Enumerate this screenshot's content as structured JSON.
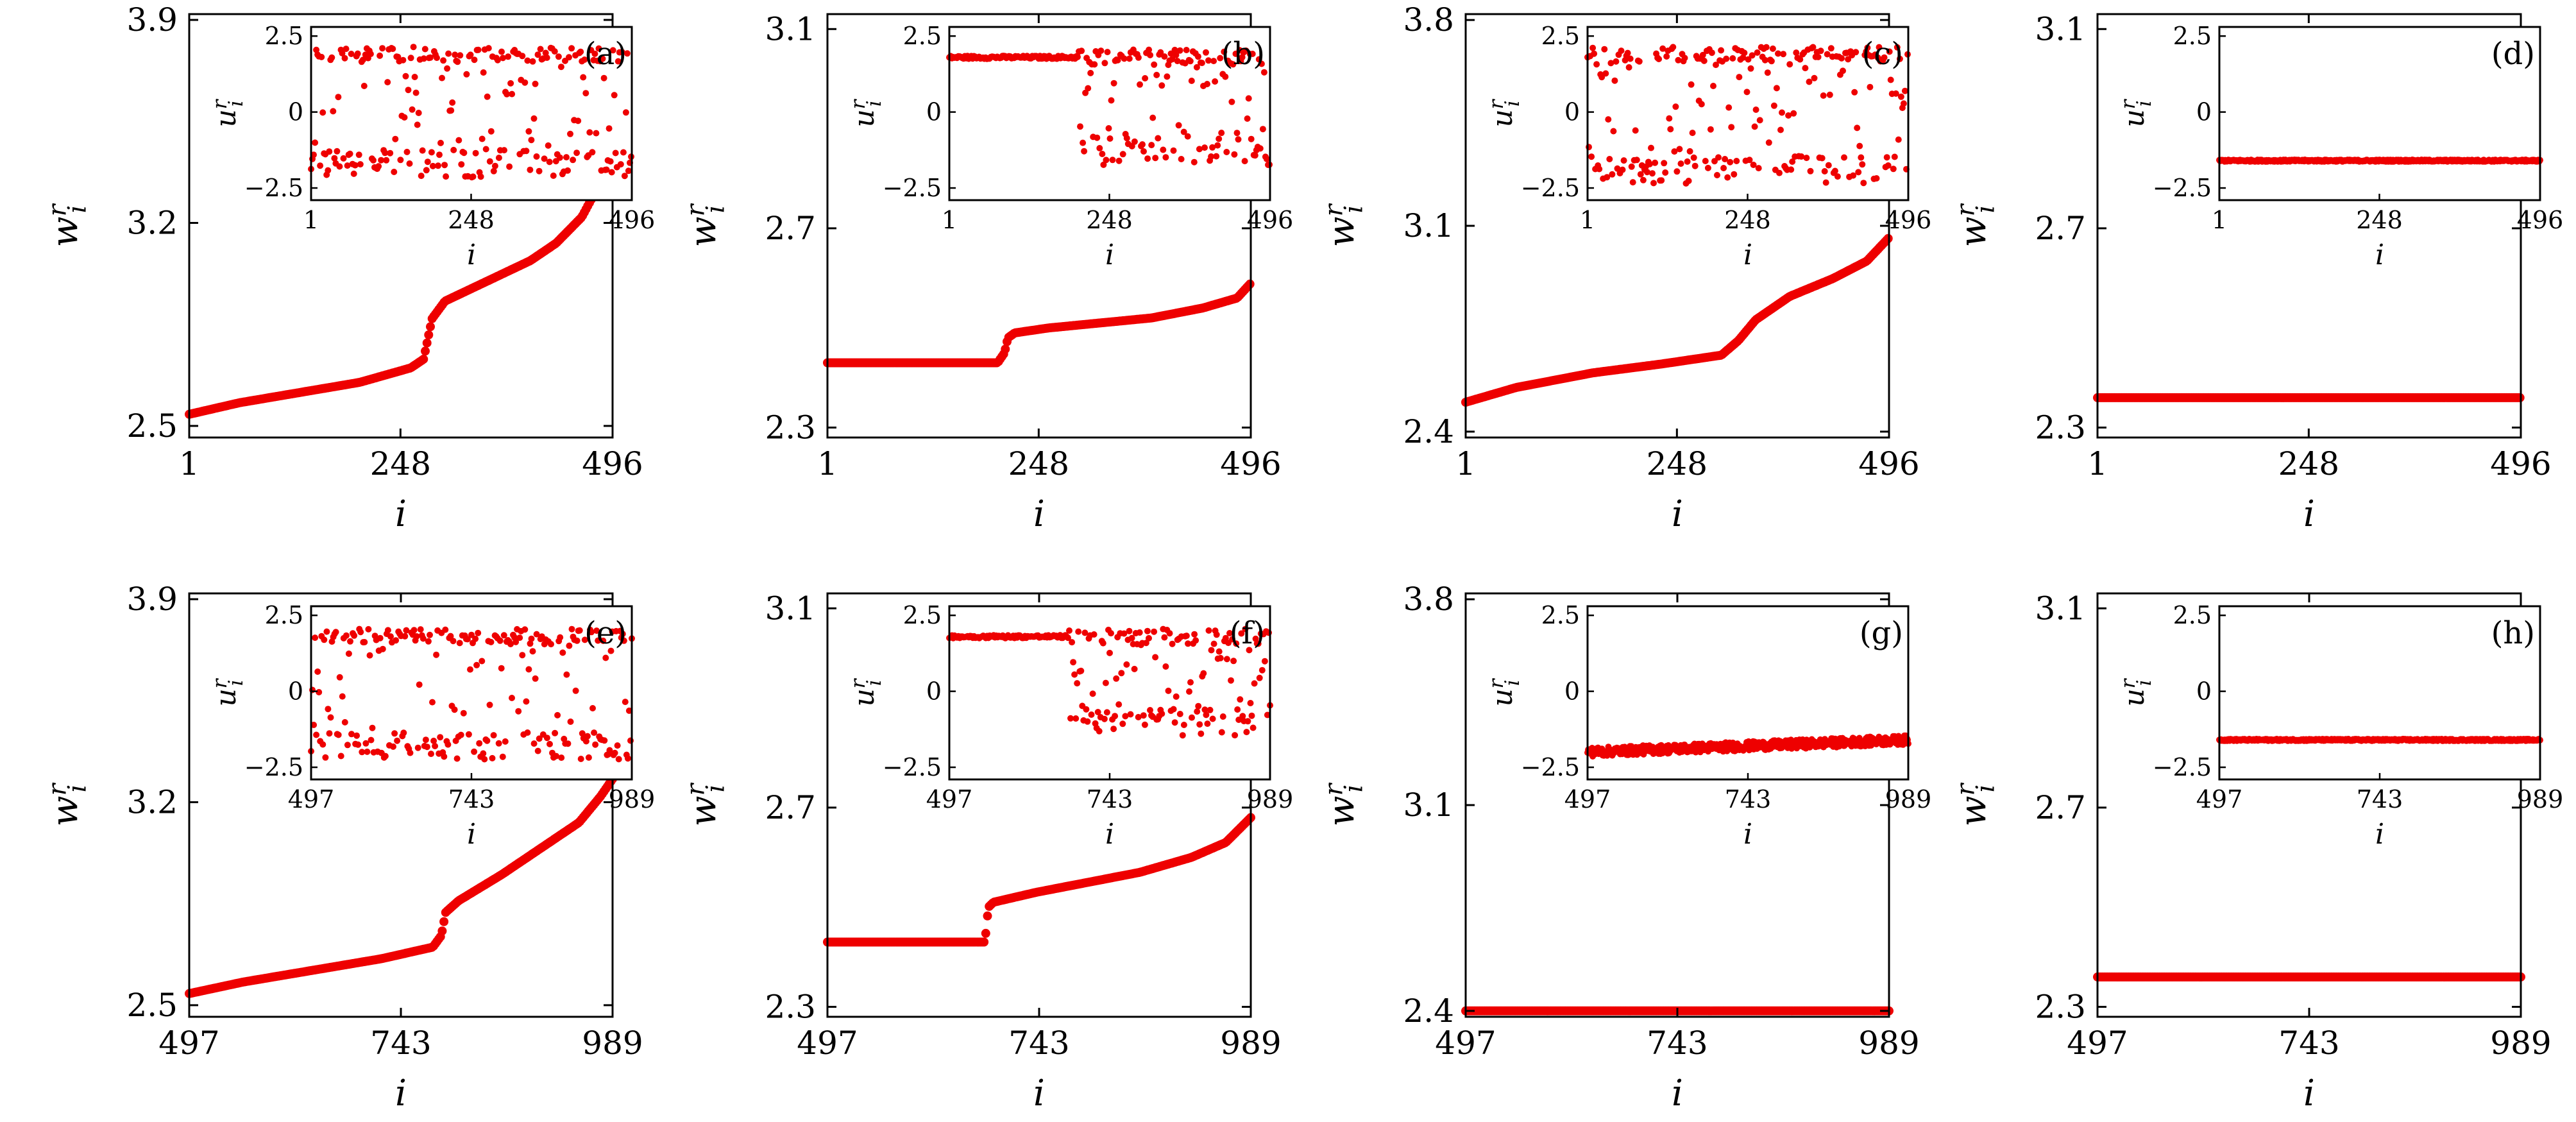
{
  "chart_data": [
    {
      "type": "scatter",
      "panel_label": "(a)",
      "xlabel": "i",
      "ylabel": "w_i^r",
      "xlim": [
        1,
        496
      ],
      "xticks": [
        1,
        248,
        496
      ],
      "ylim": [
        2.46,
        3.92
      ],
      "yticks": [
        2.5,
        3.2,
        3.9
      ],
      "color": "#ee0000",
      "main_profile": {
        "x": [
          1,
          60,
          140,
          200,
          260,
          275,
          285,
          300,
          350,
          400,
          430,
          460,
          480,
          496
        ],
        "y": [
          2.54,
          2.58,
          2.62,
          2.65,
          2.7,
          2.73,
          2.87,
          2.93,
          3.0,
          3.07,
          3.13,
          3.22,
          3.33,
          3.46
        ]
      },
      "inset": {
        "xlabel": "i",
        "ylabel": "u_i^r",
        "xlim": [
          1,
          496
        ],
        "xticks": [
          1,
          248,
          496
        ],
        "ylim": [
          -2.9,
          2.8
        ],
        "yticks": [
          -2.5,
          0,
          2.5
        ],
        "pattern": "scattered",
        "upper_band": 1.9,
        "lower_band": -1.7
      }
    },
    {
      "type": "scatter",
      "panel_label": "(b)",
      "xlabel": "i",
      "ylabel": "w_i^r",
      "xlim": [
        1,
        496
      ],
      "xticks": [
        1,
        248,
        496
      ],
      "ylim": [
        2.28,
        3.13
      ],
      "yticks": [
        2.3,
        2.7,
        3.1
      ],
      "color": "#ee0000",
      "main_profile": {
        "x": [
          1,
          200,
          208,
          212,
          220,
          260,
          320,
          380,
          440,
          480,
          496
        ],
        "y": [
          2.43,
          2.43,
          2.45,
          2.48,
          2.49,
          2.5,
          2.51,
          2.52,
          2.54,
          2.56,
          2.59
        ]
      },
      "inset": {
        "xlabel": "i",
        "ylabel": "u_i^r",
        "xlim": [
          1,
          496
        ],
        "xticks": [
          1,
          248,
          496
        ],
        "ylim": [
          -2.9,
          2.8
        ],
        "yticks": [
          -2.5,
          0,
          2.5
        ],
        "pattern": "locked-then-scattered",
        "locked_until": 200,
        "locked_value": 1.8,
        "upper_band": 1.8,
        "lower_band": -1.3
      }
    },
    {
      "type": "scatter",
      "panel_label": "(c)",
      "xlabel": "i",
      "ylabel": "w_i^r",
      "xlim": [
        1,
        496
      ],
      "xticks": [
        1,
        248,
        496
      ],
      "ylim": [
        2.38,
        3.82
      ],
      "yticks": [
        2.4,
        3.1,
        3.8
      ],
      "color": "#ee0000",
      "main_profile": {
        "x": [
          1,
          60,
          150,
          230,
          300,
          320,
          340,
          380,
          430,
          470,
          496
        ],
        "y": [
          2.5,
          2.55,
          2.6,
          2.63,
          2.66,
          2.71,
          2.78,
          2.86,
          2.92,
          2.98,
          3.06
        ]
      },
      "inset": {
        "xlabel": "i",
        "ylabel": "u_i^r",
        "xlim": [
          1,
          496
        ],
        "xticks": [
          1,
          248,
          496
        ],
        "ylim": [
          -2.9,
          2.8
        ],
        "yticks": [
          -2.5,
          0,
          2.5
        ],
        "pattern": "scattered",
        "upper_band": 1.9,
        "lower_band": -1.9
      }
    },
    {
      "type": "scatter",
      "panel_label": "(d)",
      "xlabel": "i",
      "ylabel": "w_i^r",
      "xlim": [
        1,
        496
      ],
      "xticks": [
        1,
        248,
        496
      ],
      "ylim": [
        2.28,
        3.13
      ],
      "yticks": [
        2.3,
        2.7,
        3.1
      ],
      "color": "#ee0000",
      "main_profile": {
        "x": [
          1,
          496
        ],
        "y": [
          2.36,
          2.36
        ]
      },
      "inset": {
        "xlabel": "i",
        "ylabel": "u_i^r",
        "xlim": [
          1,
          496
        ],
        "xticks": [
          1,
          248,
          496
        ],
        "ylim": [
          -2.9,
          2.8
        ],
        "yticks": [
          -2.5,
          0,
          2.5
        ],
        "pattern": "flat",
        "flat_value": -1.6
      }
    },
    {
      "type": "scatter",
      "panel_label": "(e)",
      "xlabel": "i",
      "ylabel": "w_i^r",
      "xlim": [
        497,
        989
      ],
      "xticks": [
        497,
        743,
        989
      ],
      "ylim": [
        2.46,
        3.92
      ],
      "yticks": [
        2.5,
        3.2,
        3.9
      ],
      "color": "#ee0000",
      "main_profile": {
        "x": [
          497,
          560,
          640,
          720,
          780,
          790,
          795,
          810,
          860,
          910,
          950,
          975,
          989
        ],
        "y": [
          2.54,
          2.58,
          2.62,
          2.66,
          2.7,
          2.74,
          2.82,
          2.86,
          2.95,
          3.05,
          3.13,
          3.22,
          3.28
        ]
      },
      "inset": {
        "xlabel": "i",
        "ylabel": "u_i^r",
        "xlim": [
          497,
          989
        ],
        "xticks": [
          497,
          743,
          989
        ],
        "ylim": [
          -2.9,
          2.8
        ],
        "yticks": [
          -2.5,
          0,
          2.5
        ],
        "pattern": "scattered",
        "upper_band": 1.8,
        "lower_band": -1.8
      }
    },
    {
      "type": "scatter",
      "panel_label": "(f)",
      "xlabel": "i",
      "ylabel": "w_i^r",
      "xlim": [
        497,
        989
      ],
      "xticks": [
        497,
        743,
        989
      ],
      "ylim": [
        2.28,
        3.13
      ],
      "yticks": [
        2.3,
        2.7,
        3.1
      ],
      "color": "#ee0000",
      "main_profile": {
        "x": [
          497,
          680,
          684,
          690,
          740,
          800,
          860,
          920,
          960,
          989
        ],
        "y": [
          2.43,
          2.43,
          2.5,
          2.51,
          2.53,
          2.55,
          2.57,
          2.6,
          2.63,
          2.68
        ]
      },
      "inset": {
        "xlabel": "i",
        "ylabel": "u_i^r",
        "xlim": [
          497,
          989
        ],
        "xticks": [
          497,
          743,
          989
        ],
        "ylim": [
          -2.9,
          2.8
        ],
        "yticks": [
          -2.5,
          0,
          2.5
        ],
        "pattern": "locked-then-scattered",
        "locked_until": 680,
        "locked_value": 1.8,
        "upper_band": 1.8,
        "lower_band": -1.0
      }
    },
    {
      "type": "scatter",
      "panel_label": "(g)",
      "xlabel": "i",
      "ylabel": "w_i^r",
      "xlim": [
        497,
        989
      ],
      "xticks": [
        497,
        743,
        989
      ],
      "ylim": [
        2.38,
        3.82
      ],
      "yticks": [
        2.4,
        3.1,
        3.8
      ],
      "color": "#ee0000",
      "main_profile": {
        "x": [
          497,
          989
        ],
        "y": [
          2.4,
          2.4
        ]
      },
      "inset": {
        "xlabel": "i",
        "ylabel": "u_i^r",
        "xlim": [
          497,
          989
        ],
        "xticks": [
          497,
          743,
          989
        ],
        "ylim": [
          -2.9,
          2.8
        ],
        "yticks": [
          -2.5,
          0,
          2.5
        ],
        "pattern": "flat-noisy",
        "flat_value": -2.0,
        "end_value": -1.6
      }
    },
    {
      "type": "scatter",
      "panel_label": "(h)",
      "xlabel": "i",
      "ylabel": "w_i^r",
      "xlim": [
        497,
        989
      ],
      "xticks": [
        497,
        743,
        989
      ],
      "ylim": [
        2.28,
        3.13
      ],
      "yticks": [
        2.3,
        2.7,
        3.1
      ],
      "color": "#ee0000",
      "main_profile": {
        "x": [
          497,
          989
        ],
        "y": [
          2.36,
          2.36
        ]
      },
      "inset": {
        "xlabel": "i",
        "ylabel": "u_i^r",
        "xlim": [
          497,
          989
        ],
        "xticks": [
          497,
          743,
          989
        ],
        "ylim": [
          -2.9,
          2.8
        ],
        "yticks": [
          -2.5,
          0,
          2.5
        ],
        "pattern": "flat",
        "flat_value": -1.6
      }
    }
  ]
}
